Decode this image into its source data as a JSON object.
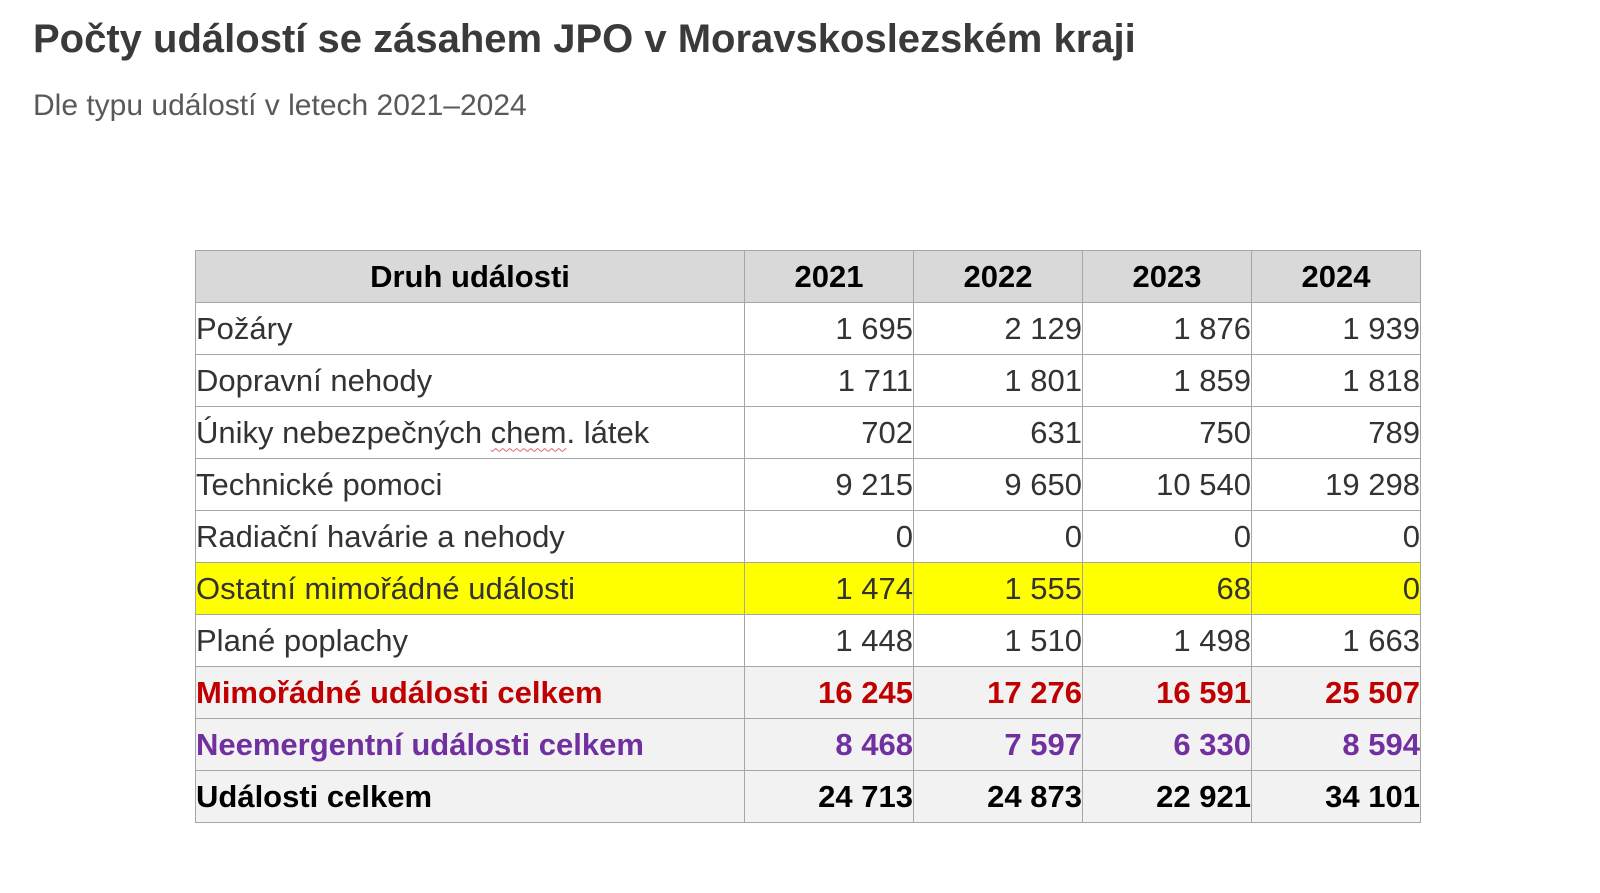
{
  "title": "Počty událostí se zásahem JPO v Moravskoslezském kraji",
  "subtitle": "Dle typu událostí v letech 2021–2024",
  "table": {
    "headers": [
      "Druh události",
      "2021",
      "2022",
      "2023",
      "2024"
    ],
    "rows": [
      {
        "label_parts": [
          "Požáry"
        ],
        "values": [
          "1 695",
          "2 129",
          "1 876",
          "1 939"
        ]
      },
      {
        "label_parts": [
          "Dopravní nehody"
        ],
        "values": [
          "1 711",
          "1 801",
          "1 859",
          "1 818"
        ]
      },
      {
        "label_parts": [
          "Úniky nebezpečných ",
          "chem",
          ". látek"
        ],
        "values": [
          "702",
          "631",
          "750",
          "789"
        ]
      },
      {
        "label_parts": [
          "Technické pomoci"
        ],
        "values": [
          "9 215",
          "9 650",
          "10 540",
          "19 298"
        ]
      },
      {
        "label_parts": [
          "Radiační havárie a nehody"
        ],
        "values": [
          "0",
          "0",
          "0",
          "0"
        ]
      },
      {
        "label_parts": [
          "Ostatní mimořádné události"
        ],
        "values": [
          "1 474",
          "1 555",
          "68",
          "0"
        ]
      },
      {
        "label_parts": [
          "Plané poplachy"
        ],
        "values": [
          "1 448",
          "1 510",
          "1 498",
          "1 663"
        ]
      },
      {
        "label_parts": [
          "Mimořádné události celkem"
        ],
        "values": [
          "16 245",
          "17 276",
          "16 591",
          "25 507"
        ]
      },
      {
        "label_parts": [
          "Neemergentní události celkem"
        ],
        "values": [
          "8 468",
          "7 597",
          "6 330",
          "8 594"
        ]
      },
      {
        "label_parts": [
          "Události celkem"
        ],
        "values": [
          "24 713",
          "24 873",
          "22 921",
          "34 101"
        ]
      }
    ]
  },
  "colors": {
    "highlight_row": "#ffff00",
    "total_emergency_text": "#c00000",
    "total_non_emergency_text": "#7030a0",
    "total_all_text": "#000000",
    "header_background": "#d9d9d9"
  }
}
